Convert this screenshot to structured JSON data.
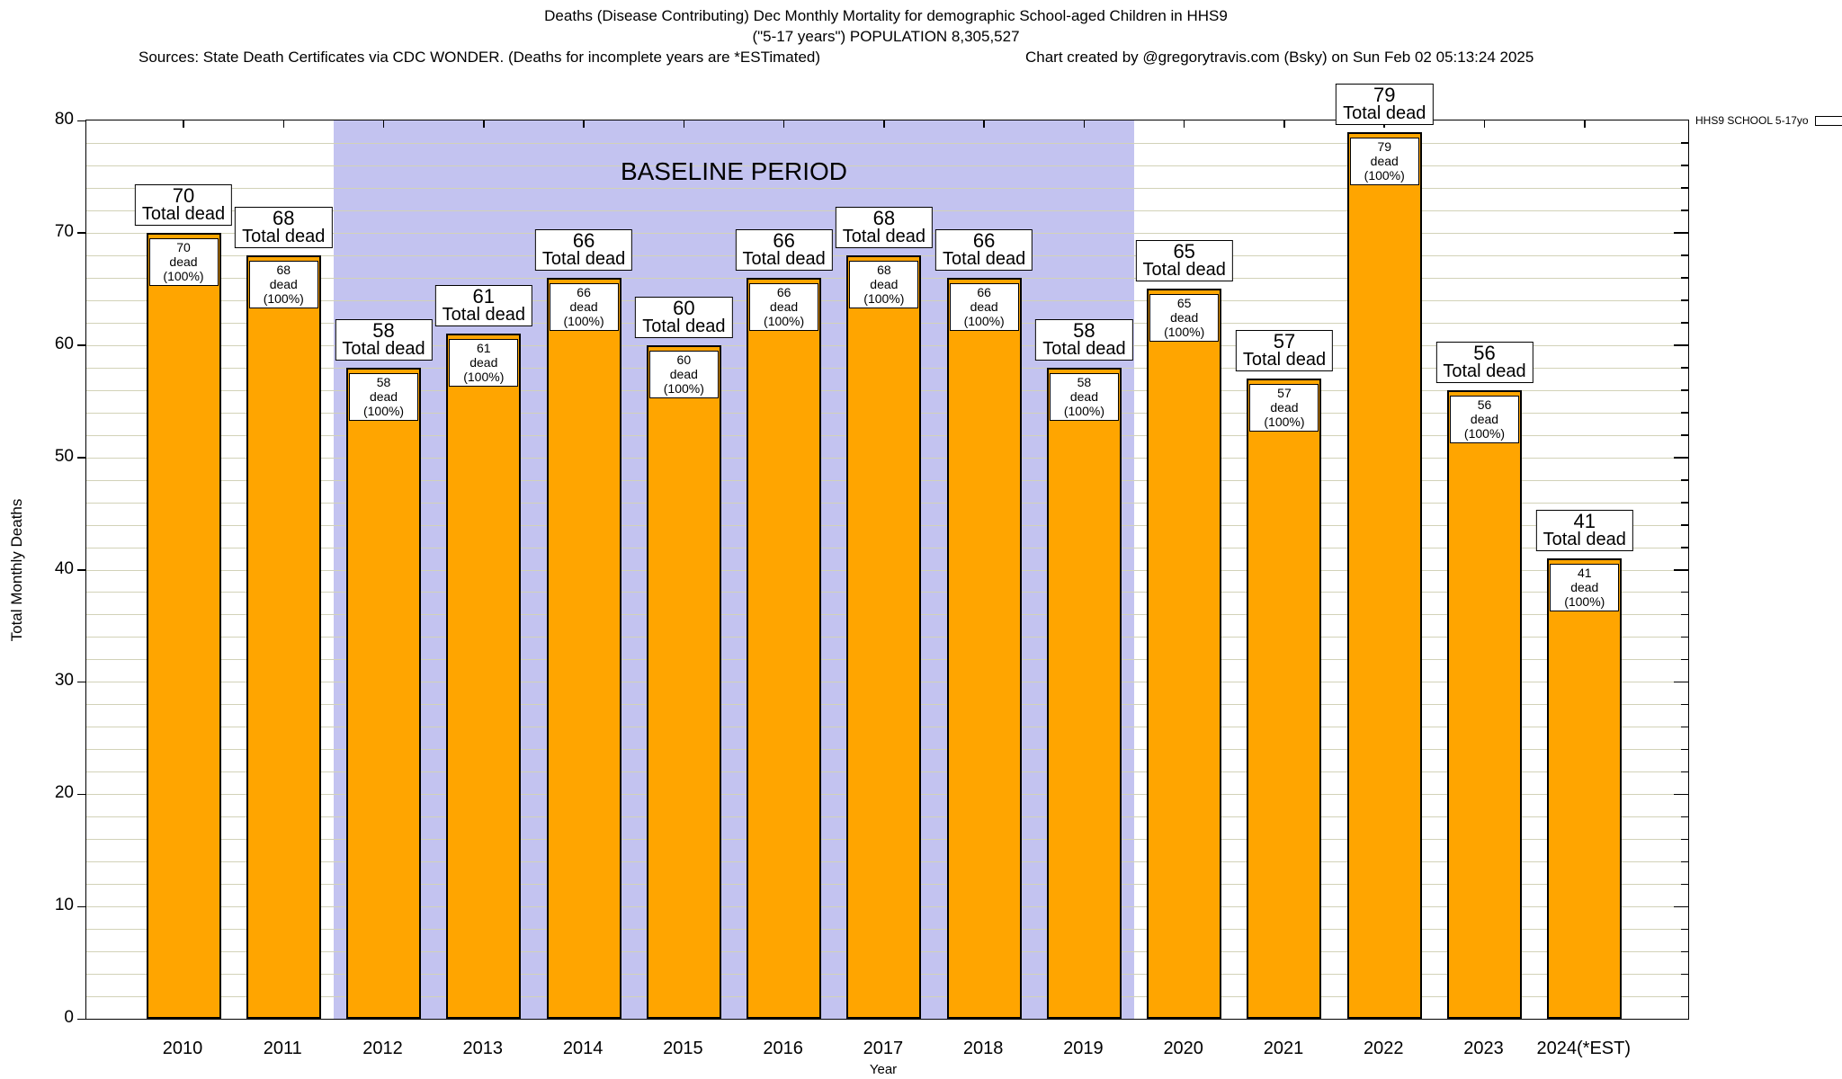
{
  "header": {
    "title_line1": "Deaths (Disease Contributing) Dec Monthly Mortality for demographic School-aged Children in HHS9",
    "title_line2": "(\"5-17 years\") POPULATION 8,305,527",
    "sources": "Sources: State Death Certificates via CDC WONDER. (Deaths for incomplete years are *ESTimated)",
    "credit": "Chart created by @gregorytravis.com (Bsky) on Sun Feb 02 05:13:24 2025"
  },
  "legend": {
    "label": "HHS9 SCHOOL 5-17yo",
    "swatch_color": "#FFA500"
  },
  "chart_data": {
    "type": "bar",
    "title": "Deaths (Disease Contributing) Dec Monthly Mortality for demographic School-aged Children in HHS9 (\"5-17 years\") POPULATION 8,305,527",
    "categories": [
      "2010",
      "2011",
      "2012",
      "2013",
      "2014",
      "2015",
      "2016",
      "2017",
      "2018",
      "2019",
      "2020",
      "2021",
      "2022",
      "2023",
      "2024(*EST)"
    ],
    "values": [
      70,
      68,
      58,
      61,
      66,
      60,
      66,
      68,
      66,
      58,
      65,
      57,
      79,
      56,
      41
    ],
    "bar_top_label": "Total dead",
    "bar_inner_label": "dead (100%)",
    "xlabel": "Year",
    "ylabel": "Total Monthly Deaths",
    "ylim": [
      0,
      80
    ],
    "ytick_step": 10,
    "minor_grid_step": 2,
    "grid": true,
    "bar_color": "#FFA500",
    "baseline_band": {
      "label": "BASELINE PERIOD",
      "from_category": "2012",
      "to_category": "2019",
      "color": "#c3c3f0"
    },
    "legend_entries": [
      "HHS9 SCHOOL 5-17yo"
    ],
    "legend_position": "top-right-outside"
  }
}
